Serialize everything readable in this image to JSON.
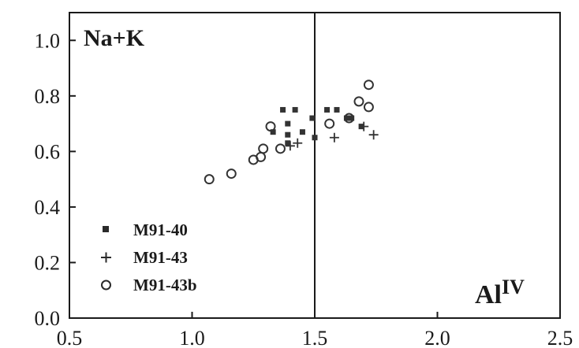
{
  "chart_data": {
    "type": "scatter",
    "title": "",
    "xlabel": "",
    "ylabel": "",
    "xlim": [
      0.5,
      2.5
    ],
    "ylim": [
      0.0,
      1.1
    ],
    "x_ticks": [
      "0.5",
      "1.0",
      "1.5",
      "2.0",
      "2.5"
    ],
    "y_ticks": [
      "0.0",
      "0.2",
      "0.4",
      "0.6",
      "0.8",
      "1.0"
    ],
    "x_tick_values": [
      0.5,
      1.0,
      1.5,
      2.0,
      2.5
    ],
    "y_tick_values": [
      0.0,
      0.2,
      0.4,
      0.6,
      0.8,
      1.0
    ],
    "grid": false,
    "reference_line_x": 1.5,
    "corner_labels": {
      "top_left": "Na+K",
      "bottom_right_base": "Al",
      "bottom_right_sup": "IV"
    },
    "legend_position": "bottom-left",
    "series": [
      {
        "name": "M91-40",
        "marker": "filled-square",
        "points": [
          [
            1.33,
            0.67
          ],
          [
            1.37,
            0.75
          ],
          [
            1.39,
            0.7
          ],
          [
            1.39,
            0.66
          ],
          [
            1.39,
            0.63
          ],
          [
            1.42,
            0.75
          ],
          [
            1.45,
            0.67
          ],
          [
            1.49,
            0.72
          ],
          [
            1.5,
            0.65
          ],
          [
            1.55,
            0.75
          ],
          [
            1.59,
            0.75
          ],
          [
            1.63,
            0.72
          ],
          [
            1.65,
            0.72
          ],
          [
            1.69,
            0.69
          ]
        ]
      },
      {
        "name": "M91-43",
        "marker": "plus",
        "points": [
          [
            1.4,
            0.62
          ],
          [
            1.43,
            0.63
          ],
          [
            1.58,
            0.65
          ],
          [
            1.7,
            0.69
          ],
          [
            1.74,
            0.66
          ]
        ]
      },
      {
        "name": "M91-43b",
        "marker": "open-circle",
        "points": [
          [
            1.07,
            0.5
          ],
          [
            1.16,
            0.52
          ],
          [
            1.25,
            0.57
          ],
          [
            1.28,
            0.58
          ],
          [
            1.29,
            0.61
          ],
          [
            1.32,
            0.69
          ],
          [
            1.36,
            0.61
          ],
          [
            1.56,
            0.7
          ],
          [
            1.64,
            0.72
          ],
          [
            1.68,
            0.78
          ],
          [
            1.72,
            0.76
          ],
          [
            1.72,
            0.84
          ]
        ]
      }
    ]
  }
}
